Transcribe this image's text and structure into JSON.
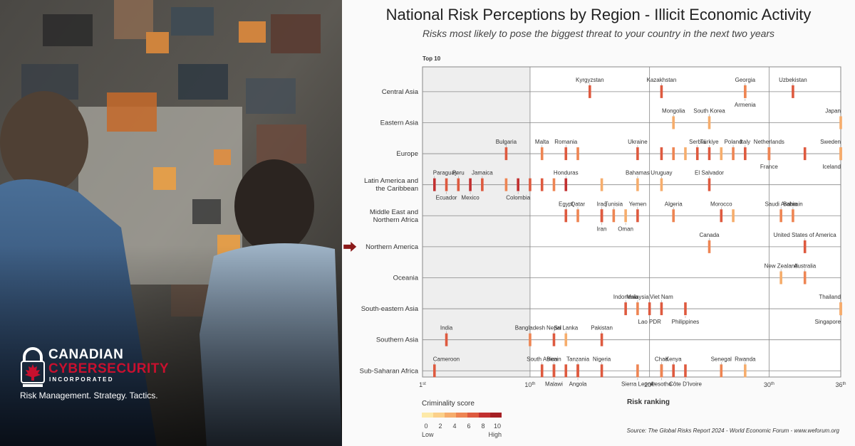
{
  "brand": {
    "name_line1": "CANADIAN",
    "name_line2": "CYBERSECURITY",
    "name_line3": "INCORPORATED",
    "tagline": "Risk Management. Strategy. Tactics.",
    "accent_color": "#c8102e"
  },
  "chart_data": {
    "type": "scatter",
    "title": "National Risk Perceptions by Region - Illicit Economic Activity",
    "subtitle": "Risks most likely to pose the biggest threat to your country in the next two years",
    "top_label": "Top 10",
    "xlabel": "Risk ranking",
    "xlim": [
      1,
      36
    ],
    "xticks": [
      {
        "value": 1,
        "base": "1",
        "sup": "st"
      },
      {
        "value": 10,
        "base": "10",
        "sup": "th"
      },
      {
        "value": 20,
        "base": "20",
        "sup": "th"
      },
      {
        "value": 30,
        "base": "30",
        "sup": "th"
      },
      {
        "value": 36,
        "base": "36",
        "sup": "th"
      }
    ],
    "highlight_region": "Northern America",
    "legend": {
      "title": "Criminality score",
      "ticks": [
        "0",
        "2",
        "4",
        "6",
        "8",
        "10"
      ],
      "low": "Low",
      "high": "High",
      "colors": [
        "#fde9a8",
        "#fbd08a",
        "#f6ad6c",
        "#ee8553",
        "#de5a3f",
        "#c23030",
        "#a51f24"
      ]
    },
    "source": "Source: The Global Risks Report 2024 - World Economic Forum - www.weforum.org",
    "regions": [
      {
        "name": "Central Asia",
        "points": [
          {
            "label": "Kyrgyzstan",
            "x": 15,
            "score": 7,
            "pos": "above"
          },
          {
            "label": "Kazakhstan",
            "x": 21,
            "score": 6,
            "pos": "above"
          },
          {
            "label": "Georgia",
            "x": 28,
            "score": 4,
            "pos": "above"
          },
          {
            "label": "Armenia",
            "x": 28,
            "score": 5,
            "pos": "below"
          },
          {
            "label": "Uzbekistan",
            "x": 32,
            "score": 7,
            "pos": "above"
          }
        ]
      },
      {
        "name": "Eastern Asia",
        "points": [
          {
            "label": "Mongolia",
            "x": 22,
            "score": 4,
            "pos": "above"
          },
          {
            "label": "South Korea",
            "x": 25,
            "score": 4,
            "pos": "above"
          },
          {
            "label": "Japan",
            "x": 36,
            "score": 4,
            "pos": "above"
          }
        ]
      },
      {
        "name": "Europe",
        "points": [
          {
            "label": "Bulgaria",
            "x": 8,
            "score": 6,
            "pos": "above"
          },
          {
            "label": "Malta",
            "x": 11,
            "score": 5,
            "pos": "above"
          },
          {
            "label": "Romania",
            "x": 13,
            "score": 6,
            "pos": "above"
          },
          {
            "label": "",
            "x": 14,
            "score": 5,
            "pos": "none"
          },
          {
            "label": "Ukraine",
            "x": 19,
            "score": 7,
            "pos": "above"
          },
          {
            "label": "",
            "x": 21,
            "score": 6,
            "pos": "none"
          },
          {
            "label": "",
            "x": 22,
            "score": 5,
            "pos": "none"
          },
          {
            "label": "Serbia",
            "x": 24,
            "score": 7,
            "pos": "above"
          },
          {
            "label": "Türkiye",
            "x": 25,
            "score": 7,
            "pos": "above"
          },
          {
            "label": "",
            "x": 23,
            "score": 4,
            "pos": "none"
          },
          {
            "label": "",
            "x": 26,
            "score": 4,
            "pos": "none"
          },
          {
            "label": "Poland",
            "x": 27,
            "score": 5,
            "pos": "above"
          },
          {
            "label": "Italy",
            "x": 28,
            "score": 6,
            "pos": "above"
          },
          {
            "label": "Netherlands",
            "x": 30,
            "score": 6,
            "pos": "above"
          },
          {
            "label": "",
            "x": 33,
            "score": 6,
            "pos": "none"
          },
          {
            "label": "Sweden",
            "x": 36,
            "score": 5,
            "pos": "above"
          },
          {
            "label": "France",
            "x": 30,
            "score": 5,
            "pos": "below"
          },
          {
            "label": "Iceland",
            "x": 36,
            "score": 3,
            "pos": "below"
          }
        ]
      },
      {
        "name": "Latin America and the Caribbean",
        "points": [
          {
            "label": "Paraguay",
            "x": 2,
            "score": 8,
            "pos": "above"
          },
          {
            "label": "Peru",
            "x": 4,
            "score": 7,
            "pos": "above"
          },
          {
            "label": "Jamaica",
            "x": 6,
            "score": 6,
            "pos": "above"
          },
          {
            "label": "Honduras",
            "x": 13,
            "score": 8,
            "pos": "above"
          },
          {
            "label": "Bahamas",
            "x": 19,
            "score": 4,
            "pos": "above"
          },
          {
            "label": "Uruguay",
            "x": 21,
            "score": 4,
            "pos": "above"
          },
          {
            "label": "El Salvador",
            "x": 25,
            "score": 6,
            "pos": "above"
          },
          {
            "label": "Ecuador",
            "x": 3,
            "score": 7,
            "pos": "below"
          },
          {
            "label": "Mexico",
            "x": 5,
            "score": 8,
            "pos": "below"
          },
          {
            "label": "Colombia",
            "x": 9,
            "score": 8,
            "pos": "below"
          },
          {
            "label": "",
            "x": 8,
            "score": 5,
            "pos": "none"
          },
          {
            "label": "",
            "x": 10,
            "score": 7,
            "pos": "none"
          },
          {
            "label": "",
            "x": 11,
            "score": 6,
            "pos": "none"
          },
          {
            "label": "",
            "x": 12,
            "score": 5,
            "pos": "none"
          },
          {
            "label": "",
            "x": 16,
            "score": 4,
            "pos": "none"
          }
        ]
      },
      {
        "name": "Middle East and Northern Africa",
        "points": [
          {
            "label": "Egypt",
            "x": 13,
            "score": 6,
            "pos": "above"
          },
          {
            "label": "Qatar",
            "x": 14,
            "score": 5,
            "pos": "above"
          },
          {
            "label": "Iraq",
            "x": 16,
            "score": 6,
            "pos": "above"
          },
          {
            "label": "Tunisia",
            "x": 17,
            "score": 5,
            "pos": "above"
          },
          {
            "label": "Yemen",
            "x": 19,
            "score": 7,
            "pos": "above"
          },
          {
            "label": "Algeria",
            "x": 22,
            "score": 5,
            "pos": "above"
          },
          {
            "label": "Morocco",
            "x": 26,
            "score": 6,
            "pos": "above"
          },
          {
            "label": "Saudi Arabia",
            "x": 31,
            "score": 5,
            "pos": "above"
          },
          {
            "label": "Bahrain",
            "x": 32,
            "score": 5,
            "pos": "above"
          },
          {
            "label": "Iran",
            "x": 16,
            "score": 7,
            "pos": "below"
          },
          {
            "label": "Oman",
            "x": 18,
            "score": 4,
            "pos": "below"
          },
          {
            "label": "",
            "x": 27,
            "score": 4,
            "pos": "none"
          }
        ]
      },
      {
        "name": "Northern America",
        "points": [
          {
            "label": "Canada",
            "x": 25,
            "score": 5,
            "pos": "above"
          },
          {
            "label": "United States of America",
            "x": 33,
            "score": 6,
            "pos": "above"
          }
        ]
      },
      {
        "name": "Oceania",
        "points": [
          {
            "label": "New Zealand",
            "x": 31,
            "score": 4,
            "pos": "above"
          },
          {
            "label": "Australia",
            "x": 33,
            "score": 5,
            "pos": "above"
          }
        ]
      },
      {
        "name": "South-eastern Asia",
        "points": [
          {
            "label": "Indonesia",
            "x": 18,
            "score": 6,
            "pos": "above"
          },
          {
            "label": "Malaysia",
            "x": 19,
            "score": 5,
            "pos": "above"
          },
          {
            "label": "Viet Nam",
            "x": 21,
            "score": 6,
            "pos": "above"
          },
          {
            "label": "Lao PDR",
            "x": 20,
            "score": 7,
            "pos": "below"
          },
          {
            "label": "Philippines",
            "x": 23,
            "score": 6,
            "pos": "below"
          },
          {
            "label": "Thailand",
            "x": 36,
            "score": 5,
            "pos": "above"
          },
          {
            "label": "Singapore",
            "x": 36,
            "score": 3,
            "pos": "below"
          }
        ]
      },
      {
        "name": "Southern Asia",
        "points": [
          {
            "label": "India",
            "x": 3,
            "score": 6,
            "pos": "above"
          },
          {
            "label": "Bangladesh",
            "x": 10,
            "score": 5,
            "pos": "above"
          },
          {
            "label": "Nepal",
            "x": 12,
            "score": 6,
            "pos": "above"
          },
          {
            "label": "Sri Lanka",
            "x": 13,
            "score": 4,
            "pos": "above"
          },
          {
            "label": "Pakistan",
            "x": 16,
            "score": 6,
            "pos": "above"
          }
        ]
      },
      {
        "name": "Sub-Saharan Africa",
        "points": [
          {
            "label": "Cameroon",
            "x": 2,
            "score": 7,
            "pos": "above"
          },
          {
            "label": "South Africa",
            "x": 11,
            "score": 6,
            "pos": "above"
          },
          {
            "label": "Benin",
            "x": 12,
            "score": 5,
            "pos": "above"
          },
          {
            "label": "Tanzania",
            "x": 14,
            "score": 6,
            "pos": "above"
          },
          {
            "label": "Nigeria",
            "x": 16,
            "score": 7,
            "pos": "above"
          },
          {
            "label": "Chad",
            "x": 21,
            "score": 6,
            "pos": "above"
          },
          {
            "label": "Kenya",
            "x": 22,
            "score": 6,
            "pos": "above"
          },
          {
            "label": "Senegal",
            "x": 26,
            "score": 5,
            "pos": "above"
          },
          {
            "label": "Rwanda",
            "x": 28,
            "score": 4,
            "pos": "above"
          },
          {
            "label": "Malawi",
            "x": 12,
            "score": 7,
            "pos": "below"
          },
          {
            "label": "Angola",
            "x": 14,
            "score": 7,
            "pos": "below"
          },
          {
            "label": "Sierra Leone",
            "x": 19,
            "score": 5,
            "pos": "below"
          },
          {
            "label": "Lesotho",
            "x": 21,
            "score": 5,
            "pos": "below"
          },
          {
            "label": "Côte D'Ivoire",
            "x": 23,
            "score": 6,
            "pos": "below"
          },
          {
            "label": "",
            "x": 13,
            "score": 6,
            "pos": "none"
          }
        ]
      }
    ]
  }
}
